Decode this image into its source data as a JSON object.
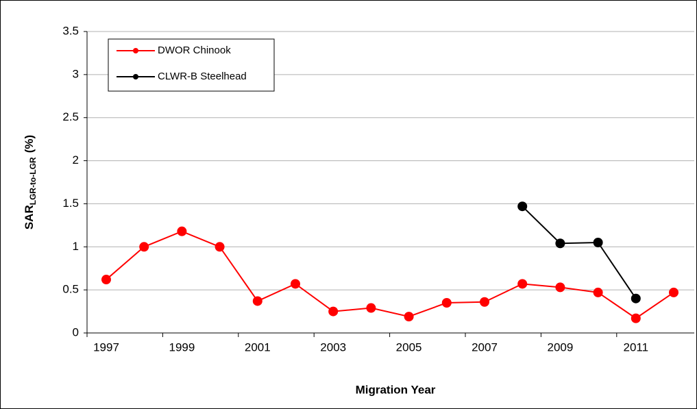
{
  "chart_data": {
    "type": "line",
    "xlabel": "Migration Year",
    "ylabel": "SAR",
    "ylabel_subscript": "LGR-to-LGR",
    "ylabel_suffix": "(%)",
    "categories": [
      "1997",
      null,
      "1999",
      null,
      "2001",
      null,
      "2003",
      null,
      "2005",
      null,
      "2007",
      null,
      "2009",
      null,
      "2011",
      null
    ],
    "series": [
      {
        "name": "DWOR Chinook",
        "color": "#ff0000",
        "values": [
          0.62,
          1.0,
          1.18,
          1.0,
          0.37,
          0.57,
          0.25,
          0.29,
          0.19,
          0.35,
          0.36,
          0.57,
          0.53,
          0.47,
          0.17,
          0.47
        ]
      },
      {
        "name": "CLWR-B Steelhead",
        "color": "#000000",
        "values": [
          null,
          null,
          null,
          null,
          null,
          null,
          null,
          null,
          null,
          null,
          null,
          1.47,
          1.04,
          1.05,
          0.4,
          null
        ]
      }
    ],
    "ylim": [
      0,
      3.5
    ],
    "yticks": [
      0,
      0.5,
      1,
      1.5,
      2,
      2.5,
      3,
      3.5
    ],
    "grid": true,
    "legend": "upper-left"
  }
}
